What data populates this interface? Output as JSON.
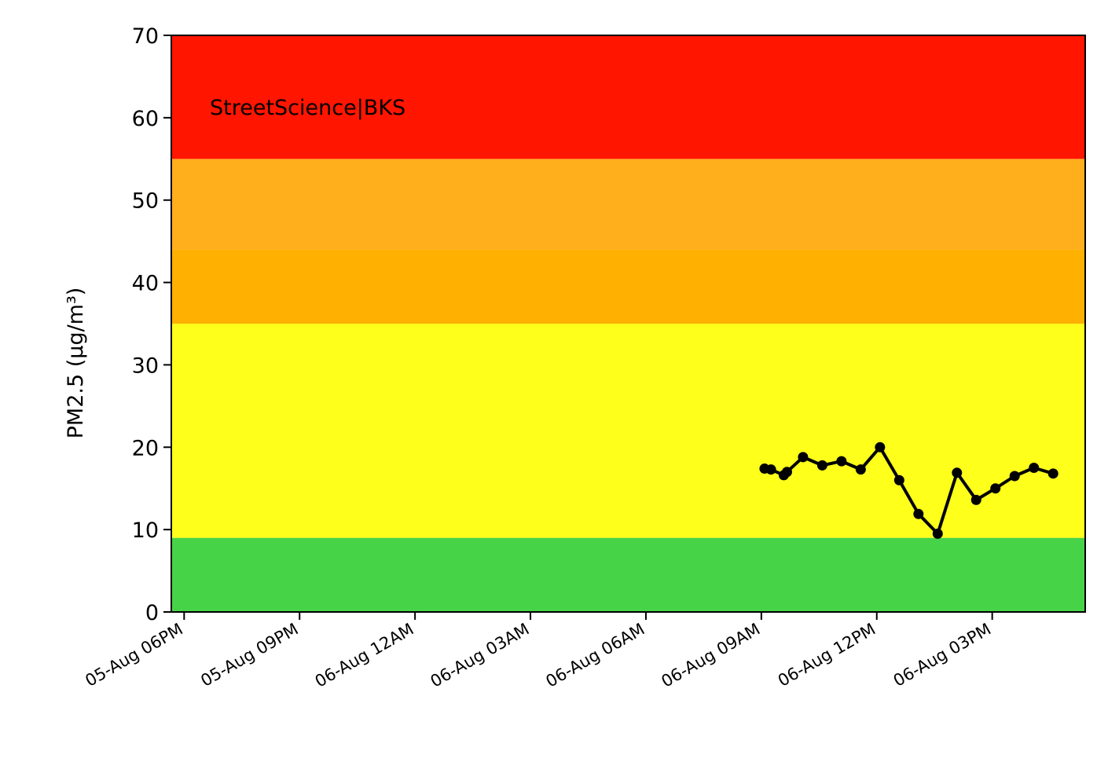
{
  "chart_data": {
    "type": "line",
    "title": "",
    "xlabel": "",
    "ylabel": "PM2.5 (µg/m³)",
    "annotation": "StreetScience|BKS",
    "x_axis": {
      "type": "datetime",
      "range": [
        "2024-08-05 17:40",
        "2024-08-06 17:25"
      ],
      "ticks": [
        {
          "t": "2024-08-05 18:00",
          "label": "05-Aug 06PM"
        },
        {
          "t": "2024-08-05 21:00",
          "label": "05-Aug 09PM"
        },
        {
          "t": "2024-08-06 00:00",
          "label": "06-Aug 12AM"
        },
        {
          "t": "2024-08-06 03:00",
          "label": "06-Aug 03AM"
        },
        {
          "t": "2024-08-06 06:00",
          "label": "06-Aug 06AM"
        },
        {
          "t": "2024-08-06 09:00",
          "label": "06-Aug 09AM"
        },
        {
          "t": "2024-08-06 12:00",
          "label": "06-Aug 12PM"
        },
        {
          "t": "2024-08-06 15:00",
          "label": "06-Aug 03PM"
        }
      ]
    },
    "y_axis": {
      "range": [
        0,
        70
      ],
      "ticks": [
        0,
        10,
        20,
        30,
        40,
        50,
        60,
        70
      ]
    },
    "grid": false,
    "bands": [
      {
        "from": 0,
        "to": 9,
        "color": "#47d347"
      },
      {
        "from": 9,
        "to": 35,
        "color": "#ffff1c"
      },
      {
        "from": 35,
        "to": 44,
        "color": "#ffb000"
      },
      {
        "from": 44,
        "to": 55,
        "color": "#ffae1c"
      },
      {
        "from": 55,
        "to": 70,
        "color": "#ff1500"
      }
    ],
    "series": [
      {
        "color": "#000000",
        "marker": "circle",
        "points": [
          {
            "t": "2024-08-06 09:05",
            "y": 17.4
          },
          {
            "t": "2024-08-06 09:15",
            "y": 17.3
          },
          {
            "t": "2024-08-06 09:35",
            "y": 16.6
          },
          {
            "t": "2024-08-06 09:40",
            "y": 17.0
          },
          {
            "t": "2024-08-06 10:05",
            "y": 18.8
          },
          {
            "t": "2024-08-06 10:35",
            "y": 17.8
          },
          {
            "t": "2024-08-06 11:05",
            "y": 18.3
          },
          {
            "t": "2024-08-06 11:35",
            "y": 17.3
          },
          {
            "t": "2024-08-06 12:05",
            "y": 20.0
          },
          {
            "t": "2024-08-06 12:35",
            "y": 16.0
          },
          {
            "t": "2024-08-06 13:05",
            "y": 11.9
          },
          {
            "t": "2024-08-06 13:35",
            "y": 9.5
          },
          {
            "t": "2024-08-06 14:05",
            "y": 16.9
          },
          {
            "t": "2024-08-06 14:35",
            "y": 13.6
          },
          {
            "t": "2024-08-06 15:05",
            "y": 15.0
          },
          {
            "t": "2024-08-06 15:35",
            "y": 16.5
          },
          {
            "t": "2024-08-06 16:05",
            "y": 17.5
          },
          {
            "t": "2024-08-06 16:35",
            "y": 16.8
          }
        ]
      }
    ]
  }
}
